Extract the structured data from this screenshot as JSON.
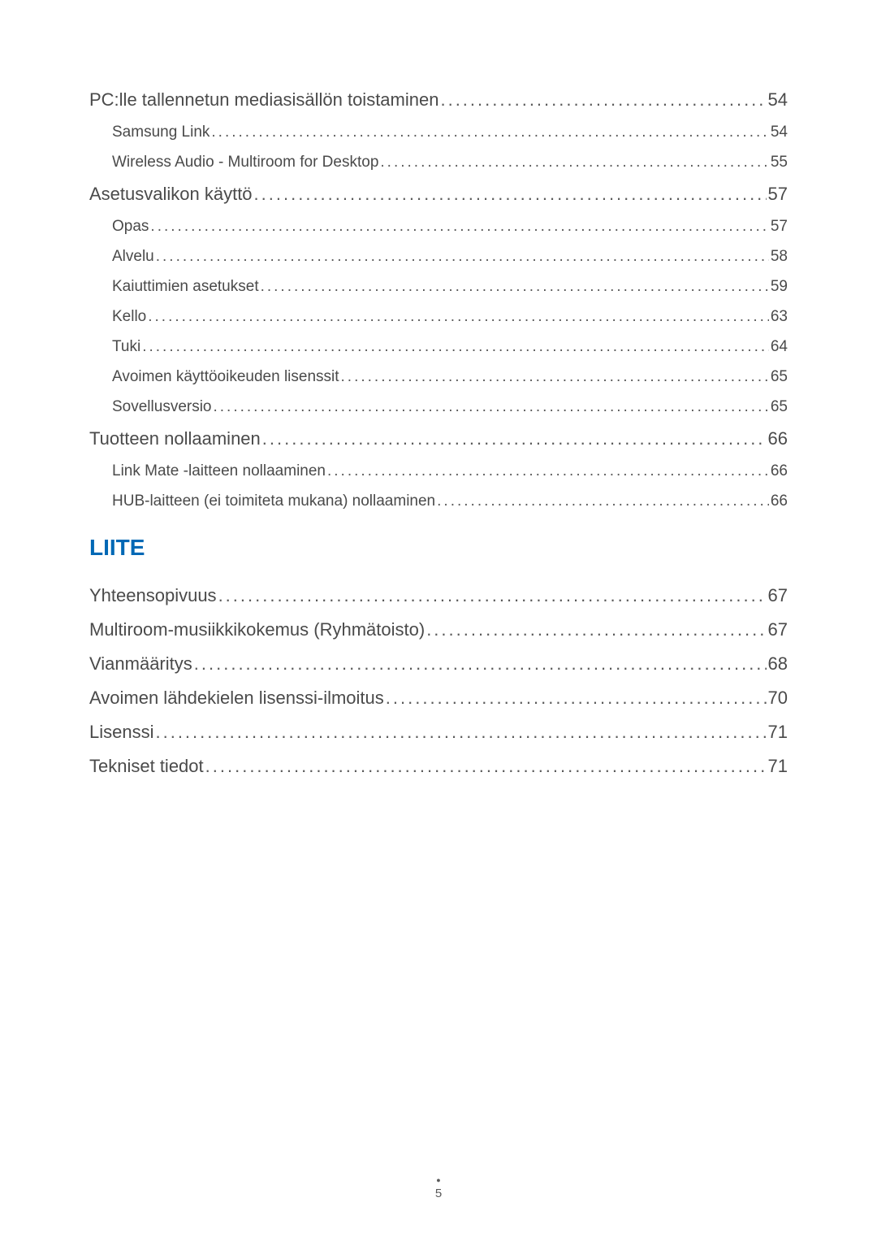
{
  "toc": {
    "section1": [
      {
        "level": 1,
        "label": "PC:lle tallennetun mediasisällön toistaminen",
        "page": "54"
      },
      {
        "level": 2,
        "label": "Samsung Link",
        "page": "54"
      },
      {
        "level": 2,
        "label": "Wireless Audio - Multiroom for Desktop",
        "page": "55"
      },
      {
        "level": 1,
        "label": "Asetusvalikon käyttö",
        "page": "57"
      },
      {
        "level": 2,
        "label": "Opas",
        "page": "57"
      },
      {
        "level": 2,
        "label": "Alvelu",
        "page": "58"
      },
      {
        "level": 2,
        "label": "Kaiuttimien asetukset",
        "page": "59"
      },
      {
        "level": 2,
        "label": "Kello",
        "page": "63"
      },
      {
        "level": 2,
        "label": "Tuki",
        "page": "64"
      },
      {
        "level": 2,
        "label": "Avoimen käyttöoikeuden lisenssit",
        "page": "65"
      },
      {
        "level": 2,
        "label": "Sovellusversio",
        "page": "65"
      },
      {
        "level": 1,
        "label": "Tuotteen nollaaminen",
        "page": "66"
      },
      {
        "level": 2,
        "label": "Link Mate -laitteen nollaaminen",
        "page": "66"
      },
      {
        "level": 2,
        "label": "HUB-laitteen (ei toimiteta mukana) nollaaminen",
        "page": "66"
      }
    ],
    "heading": "LIITE",
    "section2": [
      {
        "level": 1,
        "label": "Yhteensopivuus",
        "page": "67"
      },
      {
        "level": 1,
        "label": "Multiroom-musiikkikokemus (Ryhmätoisto)",
        "page": "67"
      },
      {
        "level": 1,
        "label": "Vianmääritys",
        "page": "68"
      },
      {
        "level": 1,
        "label": "Avoimen lähdekielen lisenssi-ilmoitus",
        "page": "70"
      },
      {
        "level": 1,
        "label": "Lisenssi",
        "page": "71"
      },
      {
        "level": 1,
        "label": "Tekniset tiedot",
        "page": "71"
      }
    ]
  },
  "pageNumber": "5",
  "styles": {
    "text_color": "#4a4a4a",
    "heading_color": "#0068b5",
    "background_color": "#ffffff",
    "level1_fontsize": 22,
    "level2_fontsize": 19,
    "heading_fontsize": 28,
    "pagenum_fontsize": 15
  }
}
